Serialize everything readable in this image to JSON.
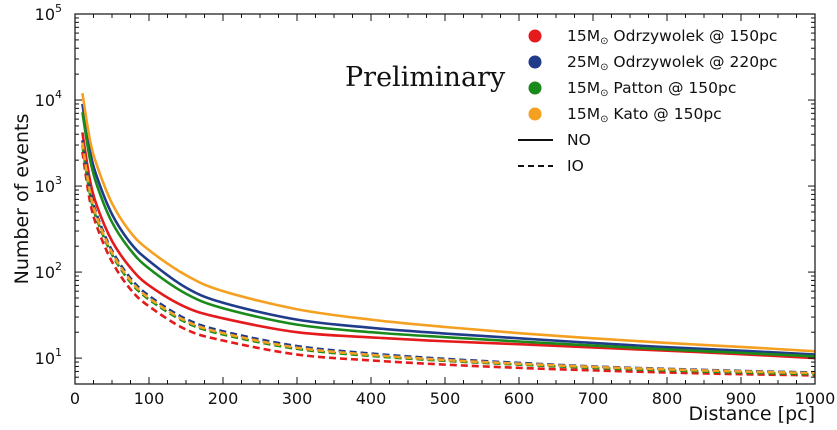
{
  "chart_data": {
    "type": "line",
    "xlabel": "Distance [pc]",
    "ylabel": "Number of events",
    "xlim": [
      0,
      1000
    ],
    "ylim": [
      5,
      100000
    ],
    "yscale": "log",
    "x_ticks": [
      0,
      100,
      200,
      300,
      400,
      500,
      600,
      700,
      800,
      900,
      1000
    ],
    "x_tick_labels": [
      "0",
      "100",
      "200",
      "300",
      "400",
      "500",
      "600",
      "700",
      "800",
      "900",
      "1000"
    ],
    "y_ticks": [
      10,
      100,
      1000,
      10000,
      100000
    ],
    "y_tick_base": "10",
    "y_tick_exponents": [
      "1",
      "2",
      "3",
      "4",
      "5"
    ],
    "grid": false,
    "legend_position": "top-right",
    "annotation": "Preliminary",
    "x": [
      10,
      20,
      30,
      50,
      75,
      100,
      150,
      200,
      300,
      400,
      500,
      600,
      700,
      800,
      900,
      1000
    ],
    "series": [
      {
        "label_mass": "15M",
        "label_rest": " Odrzywolek @ 150pc",
        "color": "#e41a1c",
        "style": "solid",
        "values": [
          4200,
          1200,
          575,
          230,
          112,
          70,
          39,
          29,
          20,
          17.4,
          15.7,
          14.5,
          13.3,
          12.2,
          11.1,
          10
        ]
      },
      {
        "label_mass": "25M",
        "label_rest": " Odrzywolek @ 220pc",
        "color": "#1f3b8a",
        "style": "solid",
        "values": [
          9000,
          2600,
          1250,
          470,
          218,
          135,
          66,
          44,
          28,
          22.5,
          19.3,
          17,
          15,
          13.4,
          12.2,
          11
        ]
      },
      {
        "label_mass": "15M",
        "label_rest": " Patton @ 150pc",
        "color": "#1a8a1a",
        "style": "solid",
        "values": [
          7200,
          2100,
          1000,
          380,
          180,
          110,
          56,
          38,
          24.5,
          20,
          17.5,
          15.6,
          14,
          12.6,
          11.5,
          10.5
        ]
      },
      {
        "label_mass": "15M",
        "label_rest": " Kato @ 150pc",
        "color": "#f5a020",
        "style": "solid",
        "values": [
          12000,
          3500,
          1700,
          630,
          290,
          180,
          92,
          60,
          37,
          28,
          23,
          19.5,
          17,
          15,
          13.5,
          12
        ]
      },
      {
        "label_mass": "",
        "label_rest": "",
        "color": "#e41a1c",
        "style": "dashed",
        "values": [
          2500,
          680,
          330,
          132,
          63,
          40,
          21.5,
          16,
          11,
          9.4,
          8.4,
          7.7,
          7.2,
          6.8,
          6.5,
          6.3
        ]
      },
      {
        "label_mass": "",
        "label_rest": "",
        "color": "#1f3b8a",
        "style": "dashed",
        "values": [
          3400,
          950,
          450,
          178,
          85,
          53,
          28.5,
          20.5,
          13.8,
          11.3,
          9.8,
          8.8,
          8,
          7.5,
          7.1,
          6.8
        ]
      },
      {
        "label_mass": "",
        "label_rest": "",
        "color": "#1a8a1a",
        "style": "dashed",
        "values": [
          3000,
          830,
          400,
          160,
          76,
          48,
          26,
          18.8,
          12.8,
          10.6,
          9.3,
          8.4,
          7.7,
          7.2,
          6.8,
          6.5
        ]
      },
      {
        "label_mass": "",
        "label_rest": "",
        "color": "#f5a020",
        "style": "dashed",
        "values": [
          3200,
          880,
          425,
          168,
          80,
          50,
          27,
          19.5,
          13.2,
          10.9,
          9.5,
          8.6,
          7.9,
          7.4,
          7,
          6.7
        ]
      }
    ],
    "legend": {
      "sun_symbol": "⊙",
      "style_entries": [
        {
          "label": "NO",
          "style": "solid"
        },
        {
          "label": "IO",
          "style": "dashed"
        }
      ]
    }
  }
}
